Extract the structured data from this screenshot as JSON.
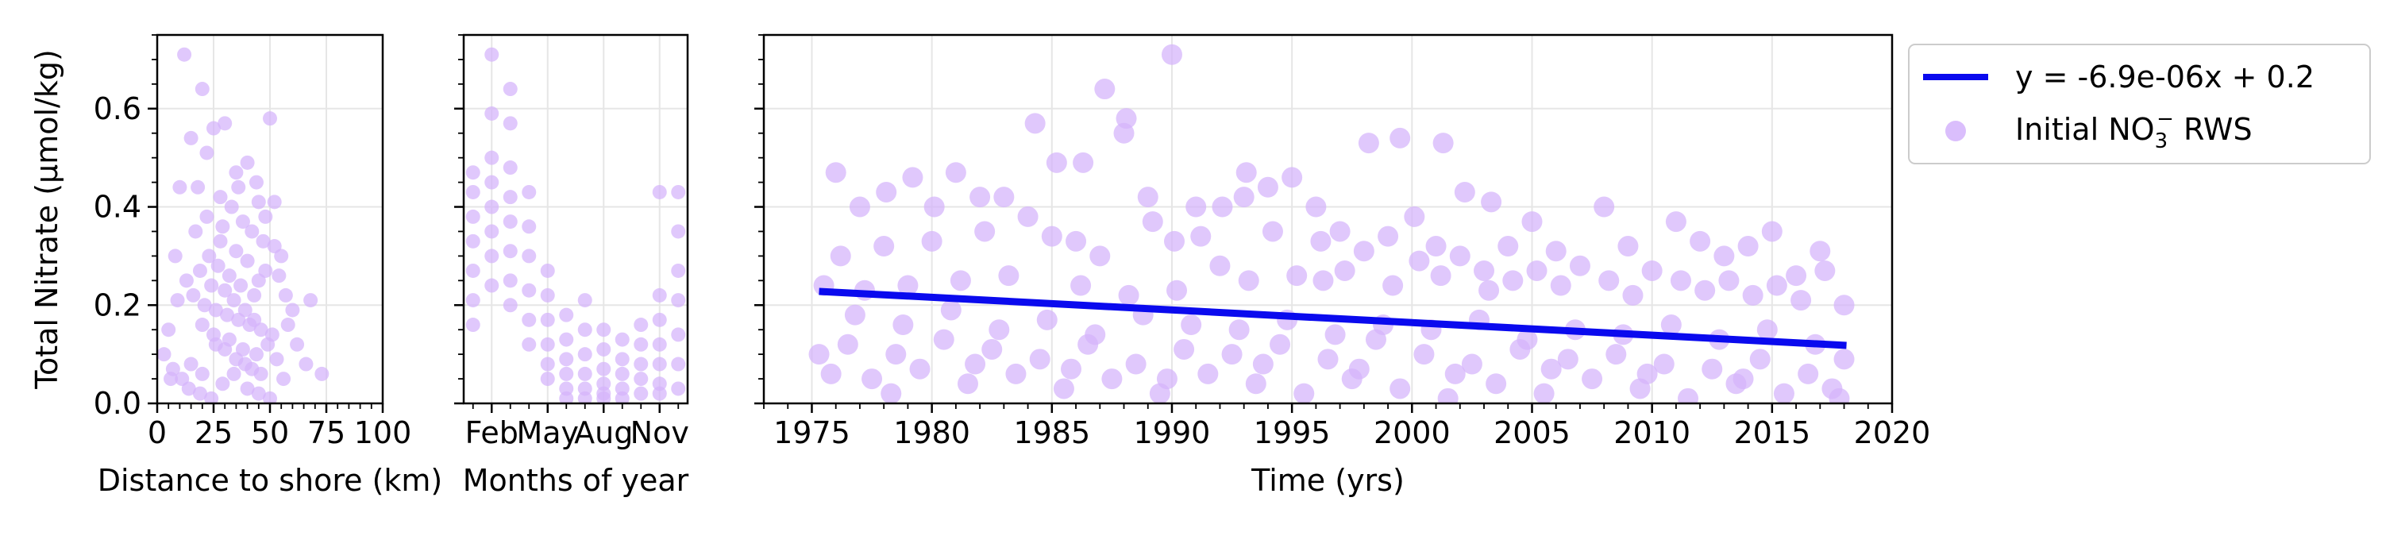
{
  "colors": {
    "scatter": "#d4b3fb",
    "fit_line": "#0a0aee",
    "grid": "#e6e6e6",
    "axes": "#000000"
  },
  "ylabel": "Total Nitrate (μmol/kg)",
  "legend": {
    "line_label": "y = -6.9e-06x + 0.2",
    "scatter_label_prefix": "Initial NO",
    "scatter_label_sub": "3",
    "scatter_label_sup": "−",
    "scatter_label_suffix": " RWS"
  },
  "chart_data": [
    {
      "type": "scatter",
      "xlabel": "Distance to shore (km)",
      "ylabel": "Total Nitrate (μmol/kg)",
      "xlim": [
        0,
        100
      ],
      "ylim": [
        0,
        0.75
      ],
      "xticks": [
        0,
        25,
        50,
        75,
        100
      ],
      "xtick_labels": [
        "0",
        "25",
        "50",
        "75",
        "100"
      ],
      "yticks": [
        0.0,
        0.2,
        0.4,
        0.6
      ],
      "ytick_labels": [
        "0.0",
        "0.2",
        "0.4",
        "0.6"
      ],
      "grid": true,
      "points": [
        [
          12,
          0.71
        ],
        [
          20,
          0.64
        ],
        [
          15,
          0.54
        ],
        [
          25,
          0.56
        ],
        [
          30,
          0.57
        ],
        [
          22,
          0.51
        ],
        [
          35,
          0.47
        ],
        [
          40,
          0.49
        ],
        [
          50,
          0.58
        ],
        [
          45,
          0.41
        ],
        [
          10,
          0.44
        ],
        [
          18,
          0.44
        ],
        [
          28,
          0.42
        ],
        [
          33,
          0.4
        ],
        [
          38,
          0.37
        ],
        [
          42,
          0.35
        ],
        [
          47,
          0.33
        ],
        [
          52,
          0.32
        ],
        [
          55,
          0.3
        ],
        [
          8,
          0.3
        ],
        [
          13,
          0.25
        ],
        [
          16,
          0.22
        ],
        [
          21,
          0.2
        ],
        [
          26,
          0.19
        ],
        [
          31,
          0.18
        ],
        [
          36,
          0.17
        ],
        [
          41,
          0.16
        ],
        [
          46,
          0.15
        ],
        [
          51,
          0.14
        ],
        [
          57,
          0.22
        ],
        [
          60,
          0.19
        ],
        [
          68,
          0.21
        ],
        [
          73,
          0.06
        ],
        [
          5,
          0.15
        ],
        [
          3,
          0.1
        ],
        [
          7,
          0.07
        ],
        [
          11,
          0.05
        ],
        [
          14,
          0.03
        ],
        [
          19,
          0.02
        ],
        [
          24,
          0.01
        ],
        [
          29,
          0.04
        ],
        [
          34,
          0.06
        ],
        [
          39,
          0.08
        ],
        [
          44,
          0.1
        ],
        [
          49,
          0.12
        ],
        [
          53,
          0.09
        ],
        [
          56,
          0.05
        ],
        [
          23,
          0.3
        ],
        [
          27,
          0.28
        ],
        [
          32,
          0.26
        ],
        [
          37,
          0.24
        ],
        [
          43,
          0.22
        ],
        [
          48,
          0.27
        ],
        [
          17,
          0.35
        ],
        [
          22,
          0.38
        ],
        [
          26,
          0.12
        ],
        [
          30,
          0.11
        ],
        [
          35,
          0.09
        ],
        [
          40,
          0.03
        ],
        [
          45,
          0.02
        ],
        [
          50,
          0.01
        ],
        [
          20,
          0.16
        ],
        [
          25,
          0.14
        ],
        [
          30,
          0.23
        ],
        [
          35,
          0.31
        ],
        [
          40,
          0.29
        ],
        [
          45,
          0.25
        ],
        [
          15,
          0.08
        ],
        [
          20,
          0.06
        ],
        [
          48,
          0.38
        ],
        [
          52,
          0.41
        ],
        [
          44,
          0.45
        ],
        [
          36,
          0.44
        ],
        [
          28,
          0.33
        ],
        [
          24,
          0.24
        ],
        [
          32,
          0.13
        ],
        [
          38,
          0.11
        ],
        [
          42,
          0.07
        ],
        [
          46,
          0.06
        ],
        [
          9,
          0.21
        ],
        [
          6,
          0.05
        ],
        [
          58,
          0.16
        ],
        [
          62,
          0.12
        ],
        [
          66,
          0.08
        ],
        [
          54,
          0.26
        ],
        [
          19,
          0.27
        ],
        [
          29,
          0.36
        ],
        [
          34,
          0.21
        ],
        [
          39,
          0.19
        ],
        [
          43,
          0.17
        ]
      ]
    },
    {
      "type": "scatter",
      "xlabel": "Months of year",
      "xlim": [
        0.5,
        12.5
      ],
      "ylim": [
        0,
        0.75
      ],
      "xticks": [
        2,
        5,
        8,
        11
      ],
      "xtick_labels": [
        "Feb",
        "May",
        "Aug",
        "Nov"
      ],
      "grid": true,
      "points": [
        [
          1.0,
          0.47
        ],
        [
          1.0,
          0.43
        ],
        [
          1.0,
          0.38
        ],
        [
          1.0,
          0.33
        ],
        [
          1.0,
          0.27
        ],
        [
          1.0,
          0.21
        ],
        [
          1.0,
          0.16
        ],
        [
          2.0,
          0.71
        ],
        [
          2.0,
          0.59
        ],
        [
          2.0,
          0.5
        ],
        [
          2.0,
          0.45
        ],
        [
          2.0,
          0.4
        ],
        [
          2.0,
          0.35
        ],
        [
          2.0,
          0.3
        ],
        [
          2.0,
          0.24
        ],
        [
          3.0,
          0.64
        ],
        [
          3.0,
          0.57
        ],
        [
          3.0,
          0.48
        ],
        [
          3.0,
          0.42
        ],
        [
          3.0,
          0.37
        ],
        [
          3.0,
          0.31
        ],
        [
          3.0,
          0.25
        ],
        [
          3.0,
          0.2
        ],
        [
          4.0,
          0.43
        ],
        [
          4.0,
          0.36
        ],
        [
          4.0,
          0.3
        ],
        [
          4.0,
          0.23
        ],
        [
          4.0,
          0.17
        ],
        [
          4.0,
          0.12
        ],
        [
          5.0,
          0.27
        ],
        [
          5.0,
          0.22
        ],
        [
          5.0,
          0.17
        ],
        [
          5.0,
          0.12
        ],
        [
          5.0,
          0.08
        ],
        [
          5.0,
          0.05
        ],
        [
          6.0,
          0.18
        ],
        [
          6.0,
          0.13
        ],
        [
          6.0,
          0.09
        ],
        [
          6.0,
          0.06
        ],
        [
          6.0,
          0.03
        ],
        [
          6.0,
          0.01
        ],
        [
          7.0,
          0.21
        ],
        [
          7.0,
          0.15
        ],
        [
          7.0,
          0.1
        ],
        [
          7.0,
          0.06
        ],
        [
          7.0,
          0.03
        ],
        [
          7.0,
          0.01
        ],
        [
          8.0,
          0.15
        ],
        [
          8.0,
          0.11
        ],
        [
          8.0,
          0.07
        ],
        [
          8.0,
          0.04
        ],
        [
          8.0,
          0.02
        ],
        [
          8.0,
          0.01
        ],
        [
          9.0,
          0.13
        ],
        [
          9.0,
          0.09
        ],
        [
          9.0,
          0.06
        ],
        [
          9.0,
          0.03
        ],
        [
          9.0,
          0.01
        ],
        [
          10.0,
          0.16
        ],
        [
          10.0,
          0.12
        ],
        [
          10.0,
          0.08
        ],
        [
          10.0,
          0.05
        ],
        [
          10.0,
          0.02
        ],
        [
          11.0,
          0.43
        ],
        [
          11.0,
          0.22
        ],
        [
          11.0,
          0.17
        ],
        [
          11.0,
          0.12
        ],
        [
          11.0,
          0.08
        ],
        [
          11.0,
          0.04
        ],
        [
          11.0,
          0.02
        ],
        [
          12.0,
          0.43
        ],
        [
          12.0,
          0.35
        ],
        [
          12.0,
          0.27
        ],
        [
          12.0,
          0.21
        ],
        [
          12.0,
          0.14
        ],
        [
          12.0,
          0.08
        ],
        [
          12.0,
          0.03
        ]
      ]
    },
    {
      "type": "scatter",
      "xlabel": "Time (yrs)",
      "xlim": [
        1973,
        2020
      ],
      "ylim": [
        0,
        0.75
      ],
      "xticks": [
        1975,
        1980,
        1985,
        1990,
        1995,
        2000,
        2005,
        2010,
        2015,
        2020
      ],
      "xtick_labels": [
        "1975",
        "1980",
        "1985",
        "1990",
        "1995",
        "2000",
        "2005",
        "2010",
        "2015",
        "2020"
      ],
      "grid": true,
      "fit_line": {
        "x": [
          1975.3,
          2018.1
        ],
        "y": [
          0.228,
          0.118
        ],
        "name": "y = -6.9e-06x + 0.2"
      },
      "series_name": "Initial NO3− RWS",
      "points": [
        [
          1990.0,
          0.71
        ],
        [
          1987.2,
          0.64
        ],
        [
          1984.3,
          0.57
        ],
        [
          1988.1,
          0.58
        ],
        [
          1998.2,
          0.53
        ],
        [
          1999.5,
          0.54
        ],
        [
          2001.3,
          0.53
        ],
        [
          1976.0,
          0.47
        ],
        [
          1985.2,
          0.49
        ],
        [
          1986.3,
          0.49
        ],
        [
          1993.1,
          0.47
        ],
        [
          1995.0,
          0.46
        ],
        [
          1981.0,
          0.47
        ],
        [
          1983.0,
          0.42
        ],
        [
          1988.0,
          0.55
        ],
        [
          1978.1,
          0.43
        ],
        [
          1979.2,
          0.46
        ],
        [
          1980.1,
          0.4
        ],
        [
          1982.0,
          0.42
        ],
        [
          1989.0,
          0.42
        ],
        [
          1991.0,
          0.4
        ],
        [
          1992.1,
          0.4
        ],
        [
          1994.0,
          0.44
        ],
        [
          1996.0,
          0.4
        ],
        [
          2000.1,
          0.38
        ],
        [
          2002.2,
          0.43
        ],
        [
          2003.3,
          0.41
        ],
        [
          2008.0,
          0.4
        ],
        [
          2011.0,
          0.37
        ],
        [
          2005.0,
          0.37
        ],
        [
          1977.0,
          0.4
        ],
        [
          1984.0,
          0.38
        ],
        [
          1986.0,
          0.33
        ],
        [
          1990.1,
          0.33
        ],
        [
          1993.0,
          0.42
        ],
        [
          1997.0,
          0.35
        ],
        [
          1999.0,
          0.34
        ],
        [
          2001.0,
          0.32
        ],
        [
          2004.0,
          0.32
        ],
        [
          2006.0,
          0.31
        ],
        [
          2009.0,
          0.32
        ],
        [
          2012.0,
          0.33
        ],
        [
          2013.0,
          0.3
        ],
        [
          2014.0,
          0.32
        ],
        [
          2015.0,
          0.35
        ],
        [
          2017.0,
          0.31
        ],
        [
          1976.2,
          0.3
        ],
        [
          1978.0,
          0.32
        ],
        [
          1980.0,
          0.33
        ],
        [
          1982.2,
          0.35
        ],
        [
          1985.0,
          0.34
        ],
        [
          1987.0,
          0.3
        ],
        [
          1989.2,
          0.37
        ],
        [
          1991.2,
          0.34
        ],
        [
          1994.2,
          0.35
        ],
        [
          1996.2,
          0.33
        ],
        [
          1998.0,
          0.31
        ],
        [
          2000.3,
          0.29
        ],
        [
          2002.0,
          0.3
        ],
        [
          2003.0,
          0.27
        ],
        [
          2005.2,
          0.27
        ],
        [
          2007.0,
          0.28
        ],
        [
          2010.0,
          0.27
        ],
        [
          2011.2,
          0.25
        ],
        [
          2016.0,
          0.26
        ],
        [
          2017.2,
          0.27
        ],
        [
          1975.5,
          0.24
        ],
        [
          1977.2,
          0.23
        ],
        [
          1979.0,
          0.24
        ],
        [
          1981.2,
          0.25
        ],
        [
          1983.2,
          0.26
        ],
        [
          1986.2,
          0.24
        ],
        [
          1988.2,
          0.22
        ],
        [
          1990.2,
          0.23
        ],
        [
          1992.0,
          0.28
        ],
        [
          1993.2,
          0.25
        ],
        [
          1995.2,
          0.26
        ],
        [
          1996.3,
          0.25
        ],
        [
          1997.2,
          0.27
        ],
        [
          1999.2,
          0.24
        ],
        [
          2001.2,
          0.26
        ],
        [
          2003.2,
          0.23
        ],
        [
          2004.2,
          0.25
        ],
        [
          2006.2,
          0.24
        ],
        [
          2008.2,
          0.25
        ],
        [
          2009.2,
          0.22
        ],
        [
          2012.2,
          0.23
        ],
        [
          2013.2,
          0.25
        ],
        [
          2014.2,
          0.22
        ],
        [
          2015.2,
          0.24
        ],
        [
          2016.2,
          0.21
        ],
        [
          2018.0,
          0.2
        ],
        [
          1976.5,
          0.12
        ],
        [
          1978.5,
          0.1
        ],
        [
          1980.5,
          0.13
        ],
        [
          1982.5,
          0.11
        ],
        [
          1984.5,
          0.09
        ],
        [
          1986.5,
          0.12
        ],
        [
          1988.5,
          0.08
        ],
        [
          1990.5,
          0.11
        ],
        [
          1992.5,
          0.1
        ],
        [
          1994.5,
          0.12
        ],
        [
          1996.5,
          0.09
        ],
        [
          1998.5,
          0.13
        ],
        [
          2000.5,
          0.1
        ],
        [
          2002.5,
          0.08
        ],
        [
          2004.5,
          0.11
        ],
        [
          2006.5,
          0.09
        ],
        [
          2008.5,
          0.1
        ],
        [
          2010.5,
          0.08
        ],
        [
          2012.5,
          0.07
        ],
        [
          2014.5,
          0.09
        ],
        [
          2016.5,
          0.06
        ],
        [
          2018.0,
          0.09
        ],
        [
          1975.3,
          0.1
        ],
        [
          1977.5,
          0.05
        ],
        [
          1979.5,
          0.07
        ],
        [
          1981.5,
          0.04
        ],
        [
          1983.5,
          0.06
        ],
        [
          1985.5,
          0.03
        ],
        [
          1987.5,
          0.05
        ],
        [
          1989.5,
          0.02
        ],
        [
          1991.5,
          0.06
        ],
        [
          1993.5,
          0.04
        ],
        [
          1995.5,
          0.02
        ],
        [
          1997.5,
          0.05
        ],
        [
          1999.5,
          0.03
        ],
        [
          2001.5,
          0.01
        ],
        [
          2003.5,
          0.04
        ],
        [
          2005.5,
          0.02
        ],
        [
          2007.5,
          0.05
        ],
        [
          2009.5,
          0.03
        ],
        [
          2011.5,
          0.01
        ],
        [
          2013.5,
          0.04
        ],
        [
          2015.5,
          0.02
        ],
        [
          2017.5,
          0.03
        ],
        [
          1976.8,
          0.18
        ],
        [
          1978.8,
          0.16
        ],
        [
          1980.8,
          0.19
        ],
        [
          1982.8,
          0.15
        ],
        [
          1984.8,
          0.17
        ],
        [
          1986.8,
          0.14
        ],
        [
          1988.8,
          0.18
        ],
        [
          1990.8,
          0.16
        ],
        [
          1992.8,
          0.15
        ],
        [
          1994.8,
          0.17
        ],
        [
          1996.8,
          0.14
        ],
        [
          1998.8,
          0.16
        ],
        [
          2000.8,
          0.15
        ],
        [
          2002.8,
          0.17
        ],
        [
          2004.8,
          0.13
        ],
        [
          2006.8,
          0.15
        ],
        [
          2008.8,
          0.14
        ],
        [
          2010.8,
          0.16
        ],
        [
          2012.8,
          0.13
        ],
        [
          2014.8,
          0.15
        ],
        [
          2016.8,
          0.12
        ],
        [
          1975.8,
          0.06
        ],
        [
          1978.3,
          0.02
        ],
        [
          1981.8,
          0.08
        ],
        [
          1985.8,
          0.07
        ],
        [
          1989.8,
          0.05
        ],
        [
          1993.8,
          0.08
        ],
        [
          1997.8,
          0.07
        ],
        [
          2001.8,
          0.06
        ],
        [
          2005.8,
          0.07
        ],
        [
          2009.8,
          0.06
        ],
        [
          2013.8,
          0.05
        ],
        [
          2017.8,
          0.01
        ]
      ]
    }
  ]
}
